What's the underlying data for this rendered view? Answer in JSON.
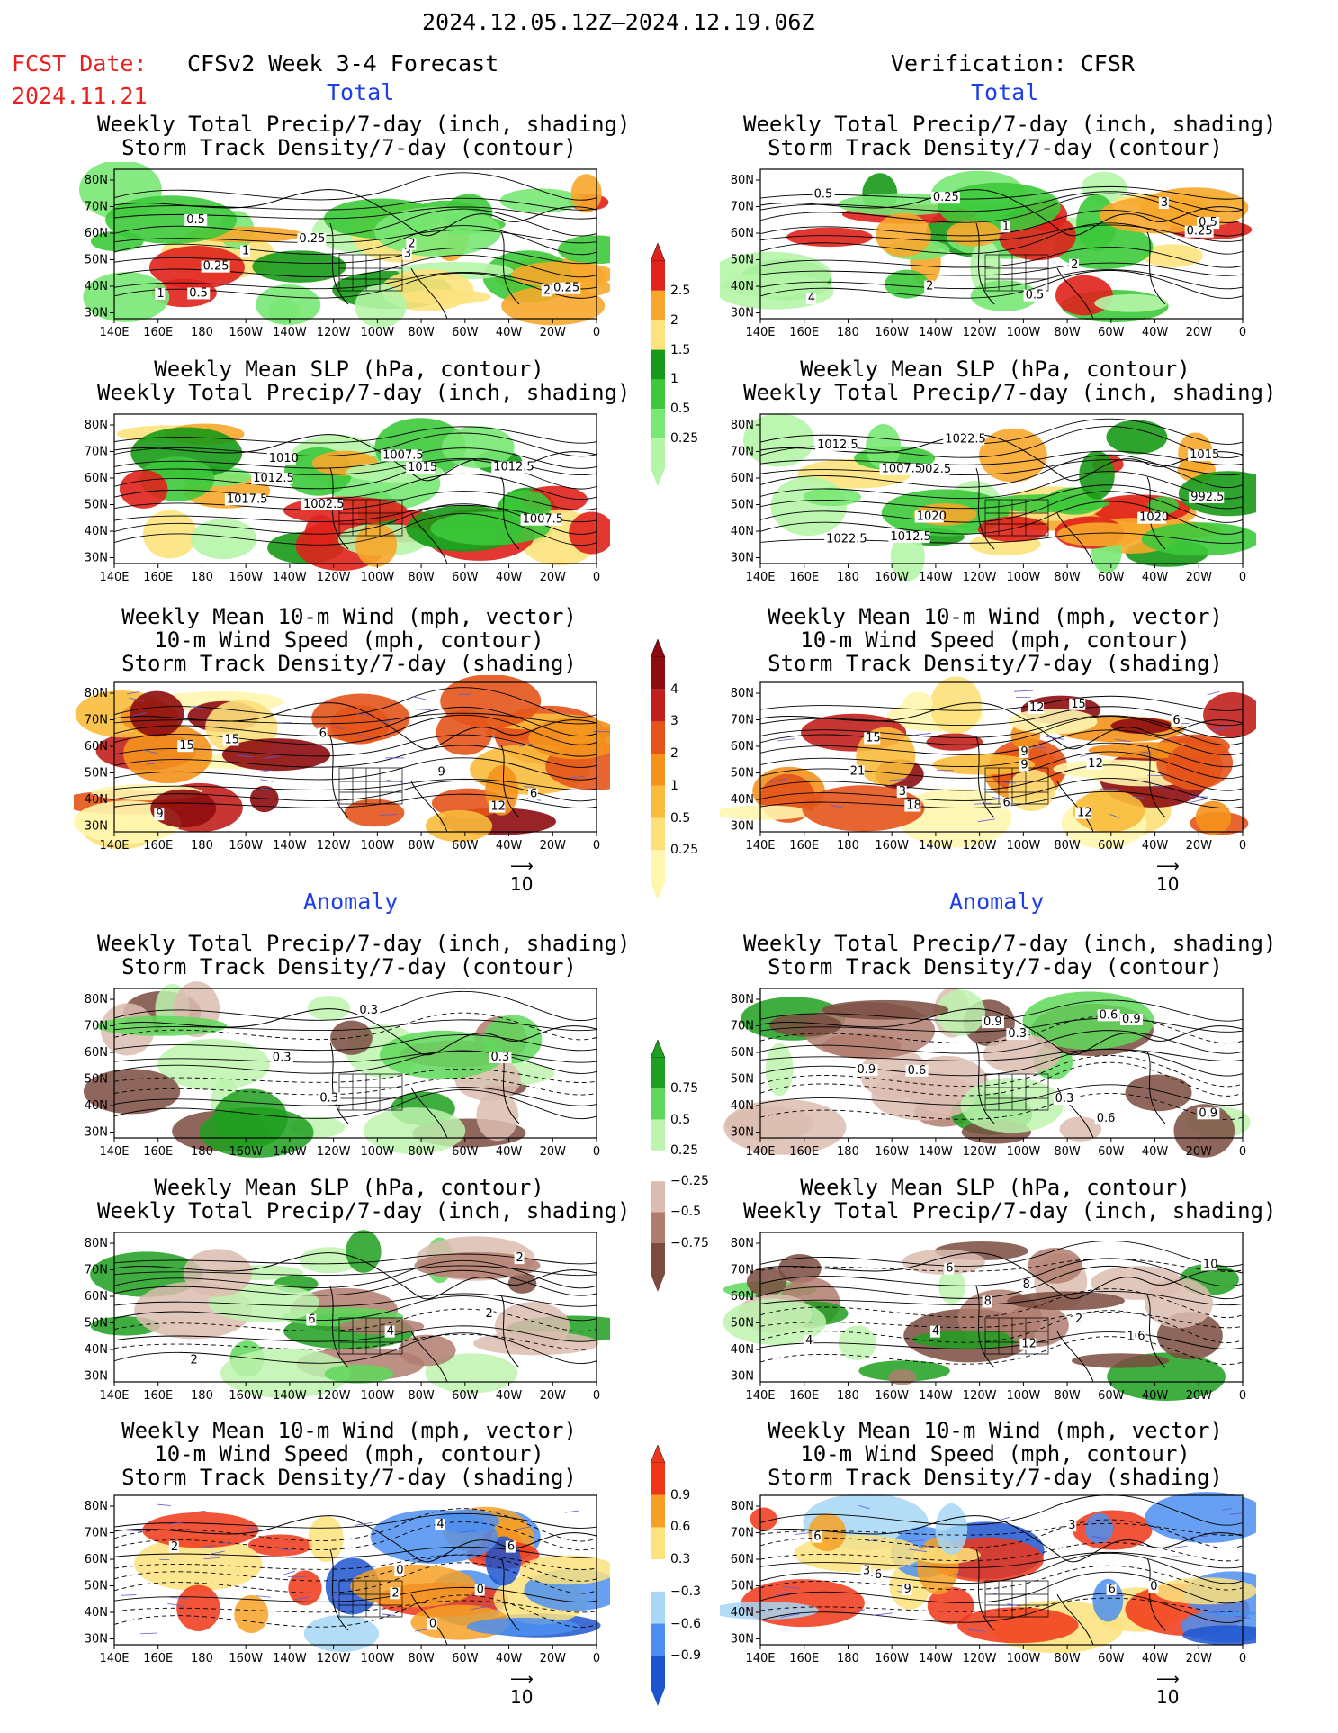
{
  "header": {
    "date_range": "2024.12.05.12Z–2024.12.19.06Z",
    "fcst_label": "FCST Date:",
    "fcst_date": "2024.11.21",
    "left_title": "CFSv2 Week 3-4 Forecast",
    "right_title": "Verification: CFSR",
    "total_label": "Total",
    "anomaly_label": "Anomaly"
  },
  "titles": {
    "precip_storm": [
      "Weekly Total Precip/7-day (inch, shading)",
      "Storm Track Density/7-day (contour)"
    ],
    "slp_precip": [
      "Weekly Mean SLP (hPa, contour)",
      "Weekly Total Precip/7-day (inch, shading)"
    ],
    "wind": [
      "Weekly Mean 10-m Wind (mph, vector)",
      "10-m Wind Speed (mph, contour)",
      "Storm Track Density/7-day (shading)"
    ]
  },
  "axes": {
    "lon_ticks": [
      "140E",
      "160E",
      "180",
      "160W",
      "140W",
      "120W",
      "100W",
      "80W",
      "60W",
      "40W",
      "20W",
      "0"
    ],
    "lat_ticks": [
      "80N",
      "70N",
      "60N",
      "50N",
      "40N",
      "30N"
    ]
  },
  "colorbars": {
    "total_precip": [
      "2.5",
      "2",
      "1.5",
      "1",
      "0.5",
      "0.25"
    ],
    "total_storm": [
      "4",
      "3",
      "2",
      "1",
      "0.5",
      "0.25"
    ],
    "anom_precip": [
      "0.75",
      "0.5",
      "0.25",
      "−0.25",
      "−0.5",
      "−0.75"
    ],
    "anom_storm": [
      "0.9",
      "0.6",
      "0.3",
      "−0.3",
      "−0.6",
      "−0.9"
    ]
  },
  "vector_ref": "10",
  "panels": {
    "f1": [
      "1",
      "0.25",
      "0.5",
      "3",
      "2",
      "0.25",
      "0.5",
      "0.25",
      "2",
      "1"
    ],
    "v1": [
      "0.5",
      "2",
      "4",
      "3",
      "0.5",
      "0.25",
      "0.5",
      "2",
      "1",
      "0.25"
    ],
    "f2": [
      "1015",
      "1012.5",
      "1010",
      "1007.5",
      "1017.5",
      "1002.5",
      "1012.5",
      "1007.5"
    ],
    "v2": [
      "1022.5",
      "1015",
      "1012.5",
      "1020",
      "1020",
      "992.5",
      "1002.5",
      "1022.5",
      "1007.5",
      "1012.5"
    ],
    "f3": [
      "15",
      "12",
      "9",
      "6",
      "9",
      "15",
      "6"
    ],
    "v3": [
      "9",
      "6",
      "9",
      "6",
      "12",
      "12",
      "12",
      "15",
      "21",
      "18",
      "15",
      "3"
    ],
    "f4": [
      "0.3",
      "0.3",
      "0.3",
      "0.3"
    ],
    "v4": [
      "0.9",
      "0.6",
      "0.9",
      "0.3",
      "0.3",
      "0.6",
      "0.9",
      "0.9",
      "0.6"
    ],
    "f5": [
      "6",
      "4",
      "2",
      "2",
      "2"
    ],
    "v5": [
      "4",
      "12",
      "8",
      "10",
      "6",
      "2",
      "4",
      "10",
      "8",
      "6"
    ],
    "f6": [
      "0",
      "2",
      "4",
      "2",
      "0",
      "6",
      "0"
    ],
    "v6": [
      "6",
      "3",
      "6",
      "9",
      "6",
      "0",
      "3"
    ]
  }
}
